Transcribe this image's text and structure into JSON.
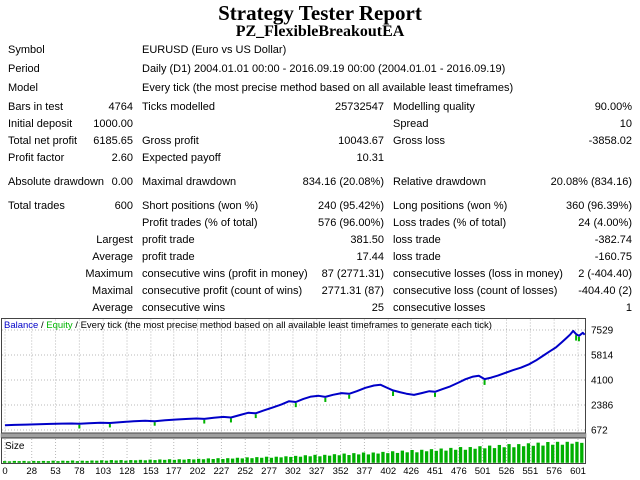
{
  "title": "Strategy Tester Report",
  "subtitle": "PZ_FlexibleBreakoutEA",
  "info_rows": [
    {
      "label": "Symbol",
      "value": "EURUSD (Euro vs US Dollar)"
    },
    {
      "label": "Period",
      "value": "Daily (D1) 2004.01.01 00:00 - 2016.09.19 00:00 (2004.01.01 - 2016.09.19)"
    },
    {
      "label": "Model",
      "value": "Every tick (the most precise method based on all available least timeframes)"
    }
  ],
  "stat_rows": [
    {
      "gap_before": false,
      "cells": [
        "Bars in test",
        "4764",
        "Ticks modelled",
        "25732547",
        "Modelling quality",
        "90.00%"
      ]
    },
    {
      "gap_before": false,
      "cells": [
        "Initial deposit",
        "1000.00",
        "",
        "",
        "Spread",
        "10"
      ]
    },
    {
      "gap_before": false,
      "cells": [
        "Total net profit",
        "6185.65",
        "Gross profit",
        "10043.67",
        "Gross loss",
        "-3858.02"
      ]
    },
    {
      "gap_before": false,
      "cells": [
        "Profit factor",
        "2.60",
        "Expected payoff",
        "10.31",
        "",
        ""
      ]
    },
    {
      "gap_before": true,
      "cells": [
        "Absolute drawdown",
        "0.00",
        "Maximal drawdown",
        "834.16 (20.08%)",
        "Relative drawdown",
        "20.08% (834.16)"
      ]
    },
    {
      "gap_before": true,
      "cells": [
        "Total trades",
        "600",
        "Short positions (won %)",
        "240 (95.42%)",
        "Long positions (won %)",
        "360 (96.39%)"
      ]
    },
    {
      "gap_before": false,
      "cells": [
        "",
        "",
        "Profit trades (% of total)",
        "576 (96.00%)",
        "Loss trades (% of total)",
        "24 (4.00%)"
      ]
    },
    {
      "gap_before": false,
      "cells": [
        "",
        "Largest",
        "profit trade",
        "381.50",
        "loss trade",
        "-382.74"
      ]
    },
    {
      "gap_before": false,
      "cells": [
        "",
        "Average",
        "profit trade",
        "17.44",
        "loss trade",
        "-160.75"
      ]
    },
    {
      "gap_before": false,
      "cells": [
        "",
        "Maximum",
        "consecutive wins (profit in money)",
        "87 (2771.31)",
        "consecutive losses (loss in money)",
        "2 (-404.40)"
      ]
    },
    {
      "gap_before": false,
      "cells": [
        "",
        "Maximal",
        "consecutive profit (count of wins)",
        "2771.31 (87)",
        "consecutive loss (count of losses)",
        "-404.40 (2)"
      ]
    },
    {
      "gap_before": false,
      "cells": [
        "",
        "Average",
        "consecutive wins",
        "25",
        "consecutive losses",
        "1"
      ]
    }
  ],
  "colors": {
    "balance": "#0000c8",
    "equity": "#00b400",
    "size_bars": "#00b000",
    "grid": "#b9b9b9",
    "frame": "#444444",
    "band": "#a0a0a0",
    "text": "#000000"
  },
  "chart_data": [
    {
      "type": "line",
      "title": "Balance / Equity / Every tick (the most precise method based on all available least timeframes to generate each tick)",
      "legend": [
        {
          "label": "Balance",
          "color": "#0000c8"
        },
        {
          "label": "Equity",
          "color": "#00b400"
        },
        {
          "label": "Every tick (the most precise method based on all available least timeframes to generate each tick)",
          "color": "#000000"
        }
      ],
      "legend_position": "top-left",
      "grid": true,
      "x_ticks": [
        0,
        28,
        53,
        78,
        103,
        128,
        153,
        177,
        202,
        227,
        252,
        277,
        302,
        327,
        352,
        377,
        402,
        426,
        451,
        476,
        501,
        526,
        551,
        576,
        601
      ],
      "y_ticks": [
        672,
        2386,
        4100,
        5814,
        7529
      ],
      "x_range": [
        0,
        612
      ],
      "y_range": [
        466,
        8352
      ],
      "series": [
        {
          "name": "Balance",
          "color": "#0000c8",
          "points": [
            [
              0,
              1000
            ],
            [
              10,
              1020
            ],
            [
              22,
              1045
            ],
            [
              35,
              1070
            ],
            [
              48,
              1090
            ],
            [
              60,
              1110
            ],
            [
              70,
              1120
            ],
            [
              78,
              1095
            ],
            [
              88,
              1140
            ],
            [
              100,
              1170
            ],
            [
              110,
              1150
            ],
            [
              122,
              1215
            ],
            [
              135,
              1270
            ],
            [
              147,
              1305
            ],
            [
              157,
              1278
            ],
            [
              168,
              1340
            ],
            [
              180,
              1395
            ],
            [
              192,
              1432
            ],
            [
              201,
              1460
            ],
            [
              209,
              1436
            ],
            [
              219,
              1512
            ],
            [
              229,
              1568
            ],
            [
              237,
              1532
            ],
            [
              247,
              1705
            ],
            [
              255,
              1852
            ],
            [
              263,
              1820
            ],
            [
              271,
              2005
            ],
            [
              281,
              2225
            ],
            [
              290,
              2425
            ],
            [
              298,
              2645
            ],
            [
              305,
              2590
            ],
            [
              313,
              2805
            ],
            [
              321,
              2960
            ],
            [
              329,
              3015
            ],
            [
              336,
              2945
            ],
            [
              344,
              3085
            ],
            [
              353,
              3205
            ],
            [
              361,
              3155
            ],
            [
              369,
              3335
            ],
            [
              378,
              3565
            ],
            [
              387,
              3725
            ],
            [
              394,
              3772
            ],
            [
              401,
              3560
            ],
            [
              407,
              3385
            ],
            [
              414,
              3270
            ],
            [
              421,
              3160
            ],
            [
              429,
              3080
            ],
            [
              437,
              3205
            ],
            [
              445,
              3335
            ],
            [
              451,
              3292
            ],
            [
              459,
              3475
            ],
            [
              467,
              3665
            ],
            [
              475,
              3905
            ],
            [
              483,
              4155
            ],
            [
              491,
              4335
            ],
            [
              497,
              4392
            ],
            [
              503,
              4165
            ],
            [
              510,
              4262
            ],
            [
              517,
              4405
            ],
            [
              525,
              4592
            ],
            [
              533,
              4782
            ],
            [
              541,
              4942
            ],
            [
              549,
              5155
            ],
            [
              557,
              5445
            ],
            [
              564,
              5745
            ],
            [
              571,
              6045
            ],
            [
              578,
              6345
            ],
            [
              584,
              6685
            ],
            [
              589,
              6985
            ],
            [
              593,
              7235
            ],
            [
              596,
              7470
            ],
            [
              599,
              7245
            ],
            [
              602,
              7130
            ],
            [
              606,
              7335
            ],
            [
              608,
              7210
            ]
          ]
        }
      ],
      "equity_marks": [
        [
          78,
          150
        ],
        [
          110,
          130
        ],
        [
          157,
          140
        ],
        [
          209,
          150
        ],
        [
          237,
          170
        ],
        [
          263,
          160
        ],
        [
          305,
          180
        ],
        [
          336,
          180
        ],
        [
          361,
          170
        ],
        [
          407,
          210
        ],
        [
          451,
          180
        ],
        [
          503,
          230
        ],
        [
          599,
          270
        ],
        [
          602,
          200
        ]
      ]
    },
    {
      "type": "bar",
      "title": "Size",
      "color": "#00b000",
      "x_ticks": [
        0,
        28,
        53,
        78,
        103,
        128,
        153,
        177,
        202,
        227,
        252,
        277,
        302,
        327,
        352,
        377,
        402,
        426,
        451,
        476,
        501,
        526,
        551,
        576,
        601
      ],
      "values": [
        0.08,
        0.07,
        0.09,
        0.08,
        0.09,
        0.07,
        0.09,
        0.08,
        0.09,
        0.08,
        0.1,
        0.08,
        0.1,
        0.09,
        0.11,
        0.08,
        0.1,
        0.09,
        0.11,
        0.1,
        0.12,
        0.1,
        0.13,
        0.11,
        0.13,
        0.1,
        0.13,
        0.12,
        0.14,
        0.12,
        0.15,
        0.13,
        0.16,
        0.14,
        0.17,
        0.14,
        0.17,
        0.15,
        0.18,
        0.16,
        0.19,
        0.17,
        0.21,
        0.18,
        0.22,
        0.18,
        0.22,
        0.2,
        0.24,
        0.21,
        0.26,
        0.22,
        0.27,
        0.24,
        0.29,
        0.24,
        0.29,
        0.26,
        0.31,
        0.28,
        0.33,
        0.29,
        0.36,
        0.31,
        0.38,
        0.31,
        0.38,
        0.34,
        0.41,
        0.36,
        0.44,
        0.37,
        0.46,
        0.4,
        0.49,
        0.4,
        0.49,
        0.44,
        0.52,
        0.46,
        0.55,
        0.47,
        0.58,
        0.5,
        0.61,
        0.5,
        0.62,
        0.55,
        0.65,
        0.57,
        0.68,
        0.58,
        0.71,
        0.62,
        0.75,
        0.62,
        0.75,
        0.67,
        0.79,
        0.69,
        0.82,
        0.7,
        0.85,
        0.74,
        0.89,
        0.74,
        0.89,
        0.79,
        0.93,
        0.81,
        0.96,
        0.82,
        0.99,
        0.86,
        1.0,
        0.86,
        1.0,
        0.91,
        1.0,
        0.95
      ]
    }
  ]
}
